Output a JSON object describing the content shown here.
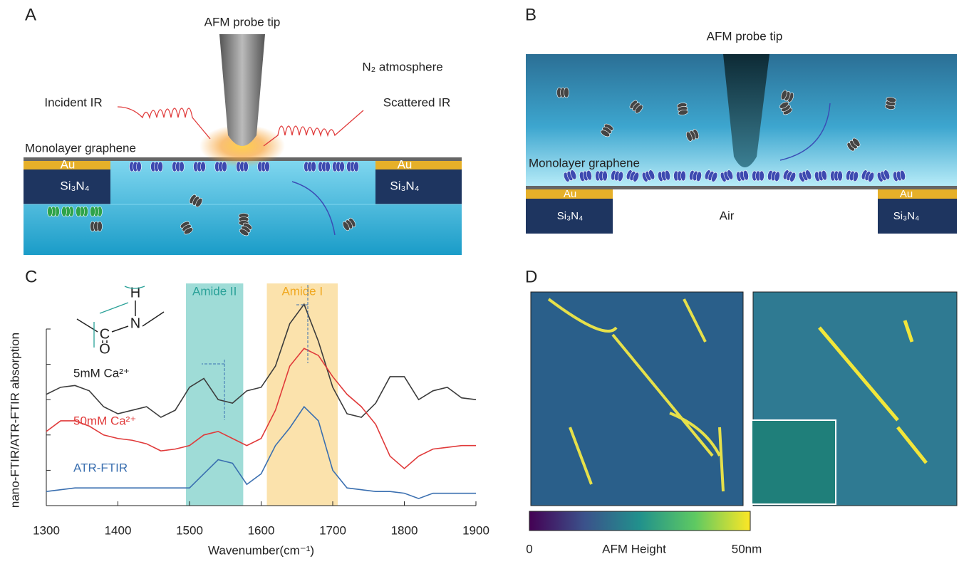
{
  "panel_a": {
    "label": "A",
    "tip": "AFM probe tip",
    "atmosphere": "N₂ atmosphere",
    "incident": "Incident IR",
    "scattered": "Scattered IR",
    "graphene": "Monolayer graphene",
    "au_left": "Au",
    "au_right": "Au",
    "si_left": "Si₃N₄",
    "si_right": "Si₃N₄"
  },
  "panel_b": {
    "label": "B",
    "tip": "AFM probe tip",
    "graphene": "Monolayer graphene",
    "au_left": "Au",
    "au_right": "Au",
    "si_left": "Si₃N₄",
    "si_right": "Si₃N₄",
    "air": "Air"
  },
  "panel_c": {
    "label": "C",
    "molecule": {
      "h": "H",
      "n": "N",
      "c": "C",
      "o": "O"
    }
  },
  "panel_d": {
    "label": "D",
    "colorbar_min": "0",
    "colorbar_title": "AFM Height",
    "colorbar_max": "50nm"
  },
  "chart_data": {
    "type": "line",
    "x_label": "Wavenumber(cm⁻¹)",
    "y_label": "nano-FTIR/ATR-FTIR absorption",
    "x": [
      1300,
      1320,
      1340,
      1360,
      1380,
      1400,
      1420,
      1440,
      1460,
      1480,
      1500,
      1520,
      1540,
      1560,
      1580,
      1600,
      1620,
      1640,
      1660,
      1680,
      1700,
      1720,
      1740,
      1760,
      1780,
      1800,
      1820,
      1840,
      1860,
      1880,
      1900
    ],
    "series": [
      {
        "name": "5mM Ca²⁺",
        "color": "#3c3c3c",
        "values": [
          6.3,
          6.7,
          6.8,
          6.5,
          5.6,
          5.2,
          5.4,
          5.6,
          5.0,
          5.4,
          6.7,
          7.2,
          6.0,
          5.8,
          6.5,
          6.7,
          7.9,
          10.3,
          11.4,
          9.3,
          6.7,
          5.2,
          5.0,
          5.8,
          7.3,
          7.3,
          6.0,
          6.5,
          6.7,
          6.1,
          6.0
        ]
      },
      {
        "name": "50mM Ca²⁺",
        "color": "#e03a3a",
        "values": [
          4.2,
          4.8,
          4.8,
          4.5,
          4.0,
          3.8,
          3.7,
          3.5,
          3.1,
          3.2,
          3.4,
          4.0,
          4.2,
          3.8,
          3.4,
          3.8,
          5.4,
          7.9,
          8.9,
          8.5,
          7.3,
          6.3,
          5.6,
          4.6,
          2.8,
          2.1,
          2.8,
          3.2,
          3.3,
          3.4,
          3.4
        ]
      },
      {
        "name": "ATR-FTIR",
        "color": "#3a6fb0",
        "values": [
          0.8,
          0.9,
          1.0,
          1.0,
          1.0,
          1.0,
          1.0,
          1.0,
          1.0,
          1.0,
          1.0,
          1.8,
          2.6,
          2.4,
          1.2,
          1.8,
          3.4,
          4.4,
          5.6,
          4.8,
          2.0,
          1.0,
          0.9,
          0.8,
          0.8,
          0.7,
          0.4,
          0.7,
          0.7,
          0.7,
          0.7
        ]
      }
    ],
    "bands": [
      {
        "label": "Amide II",
        "range": [
          1495,
          1575
        ],
        "color": "#5fc4bd"
      },
      {
        "label": "Amide I",
        "range": [
          1608,
          1707
        ],
        "color": "#f8c65a"
      }
    ],
    "xlim": [
      1300,
      1900
    ],
    "xticks": [
      1300,
      1400,
      1500,
      1600,
      1700,
      1800,
      1900
    ],
    "ylim": [
      0,
      10
    ],
    "yticks": [
      0,
      2,
      4,
      6,
      8,
      10
    ]
  }
}
